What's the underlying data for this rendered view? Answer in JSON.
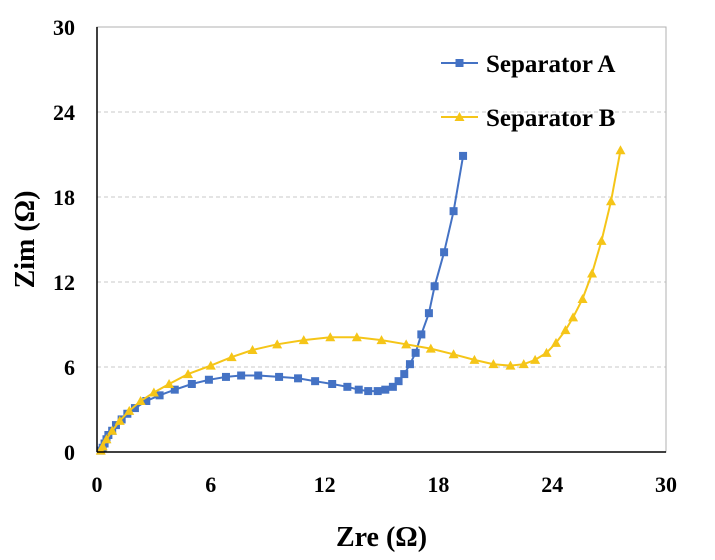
{
  "chart_data": {
    "type": "scatter",
    "xlabel": "Zre (Ω)",
    "ylabel": "Zim (Ω)",
    "xlim": [
      0,
      30
    ],
    "ylim": [
      0,
      30
    ],
    "xticks": [
      "0",
      "6",
      "12",
      "18",
      "24",
      "30"
    ],
    "yticks": [
      "0",
      "6",
      "12",
      "18",
      "24",
      "30"
    ],
    "grid": "horizontal dashed",
    "legend": "top-right",
    "series": [
      {
        "name": "Separator A",
        "color": "#4472C4",
        "marker": "square",
        "points": [
          [
            0.2,
            0.1
          ],
          [
            0.3,
            0.3
          ],
          [
            0.4,
            0.6
          ],
          [
            0.5,
            0.9
          ],
          [
            0.6,
            1.2
          ],
          [
            0.8,
            1.5
          ],
          [
            1.0,
            1.9
          ],
          [
            1.3,
            2.3
          ],
          [
            1.6,
            2.7
          ],
          [
            2.0,
            3.1
          ],
          [
            2.6,
            3.6
          ],
          [
            3.3,
            4.0
          ],
          [
            4.1,
            4.4
          ],
          [
            5.0,
            4.8
          ],
          [
            5.9,
            5.1
          ],
          [
            6.8,
            5.3
          ],
          [
            7.6,
            5.4
          ],
          [
            8.5,
            5.4
          ],
          [
            9.6,
            5.3
          ],
          [
            10.6,
            5.2
          ],
          [
            11.5,
            5.0
          ],
          [
            12.4,
            4.8
          ],
          [
            13.2,
            4.6
          ],
          [
            13.8,
            4.4
          ],
          [
            14.3,
            4.3
          ],
          [
            14.8,
            4.3
          ],
          [
            15.2,
            4.4
          ],
          [
            15.6,
            4.6
          ],
          [
            15.9,
            5.0
          ],
          [
            16.2,
            5.5
          ],
          [
            16.5,
            6.2
          ],
          [
            16.8,
            7.0
          ],
          [
            17.1,
            8.3
          ],
          [
            17.5,
            9.8
          ],
          [
            17.8,
            11.7
          ],
          [
            18.3,
            14.1
          ],
          [
            18.8,
            17.0
          ],
          [
            19.3,
            20.9
          ]
        ]
      },
      {
        "name": "Separator B",
        "color": "#F5C518",
        "marker": "triangle",
        "points": [
          [
            0.2,
            0.1
          ],
          [
            0.3,
            0.4
          ],
          [
            0.5,
            0.9
          ],
          [
            0.8,
            1.5
          ],
          [
            1.2,
            2.2
          ],
          [
            1.7,
            2.9
          ],
          [
            2.3,
            3.6
          ],
          [
            3.0,
            4.2
          ],
          [
            3.8,
            4.8
          ],
          [
            4.8,
            5.5
          ],
          [
            6.0,
            6.1
          ],
          [
            7.1,
            6.7
          ],
          [
            8.2,
            7.2
          ],
          [
            9.5,
            7.6
          ],
          [
            10.9,
            7.9
          ],
          [
            12.3,
            8.1
          ],
          [
            13.7,
            8.1
          ],
          [
            15.0,
            7.9
          ],
          [
            16.3,
            7.6
          ],
          [
            17.6,
            7.3
          ],
          [
            18.8,
            6.9
          ],
          [
            19.9,
            6.5
          ],
          [
            20.9,
            6.2
          ],
          [
            21.8,
            6.1
          ],
          [
            22.5,
            6.2
          ],
          [
            23.1,
            6.5
          ],
          [
            23.7,
            7.0
          ],
          [
            24.2,
            7.7
          ],
          [
            24.7,
            8.6
          ],
          [
            25.1,
            9.5
          ],
          [
            25.6,
            10.8
          ],
          [
            26.1,
            12.6
          ],
          [
            26.6,
            14.9
          ],
          [
            27.1,
            17.7
          ],
          [
            27.6,
            21.3
          ]
        ]
      }
    ]
  }
}
